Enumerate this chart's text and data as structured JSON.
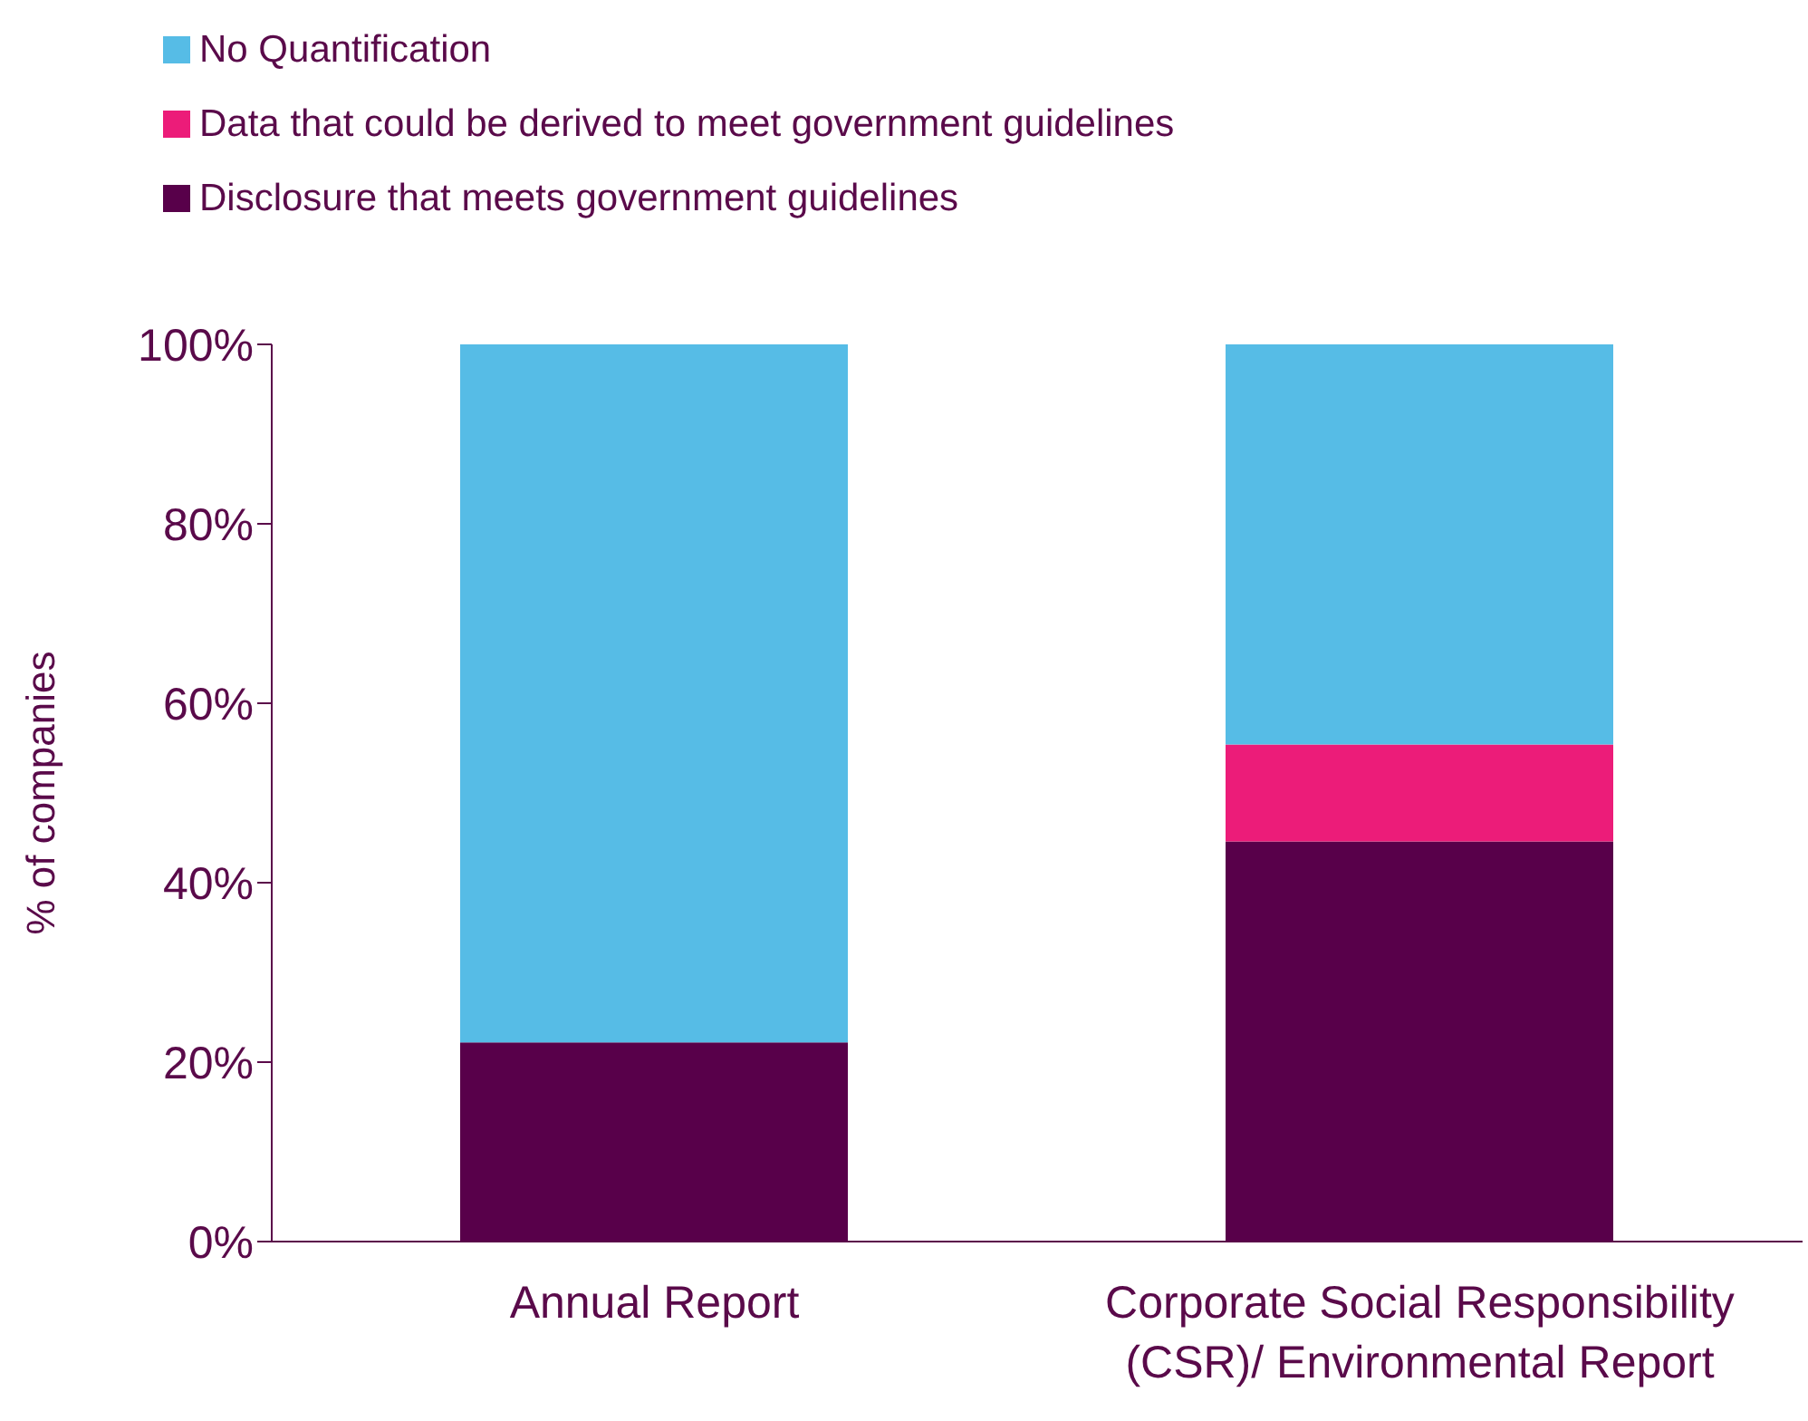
{
  "chart_data": {
    "type": "bar",
    "stacked": true,
    "ylabel": "% of companies",
    "categories": [
      "Annual Report",
      "Corporate Social Responsibility (CSR)/ Environmental Report"
    ],
    "series": [
      {
        "name": "Disclosure that meets government guidelines",
        "color": "#58004a",
        "values": [
          22.2,
          44.6
        ]
      },
      {
        "name": "Data that could be derived to meet government guidelines",
        "color": "#ec1c79",
        "values": [
          0,
          10.8
        ]
      },
      {
        "name": "No Quantification",
        "color": "#56bce6",
        "values": [
          77.8,
          44.6
        ]
      }
    ],
    "ylim": [
      0,
      100
    ],
    "yticks": [
      {
        "value": 0,
        "label": "0%"
      },
      {
        "value": 20,
        "label": "20%"
      },
      {
        "value": 40,
        "label": "40%"
      },
      {
        "value": 60,
        "label": "60%"
      },
      {
        "value": 80,
        "label": "80%"
      },
      {
        "value": 100,
        "label": "100%"
      }
    ],
    "grid": false,
    "legend": "top left"
  }
}
